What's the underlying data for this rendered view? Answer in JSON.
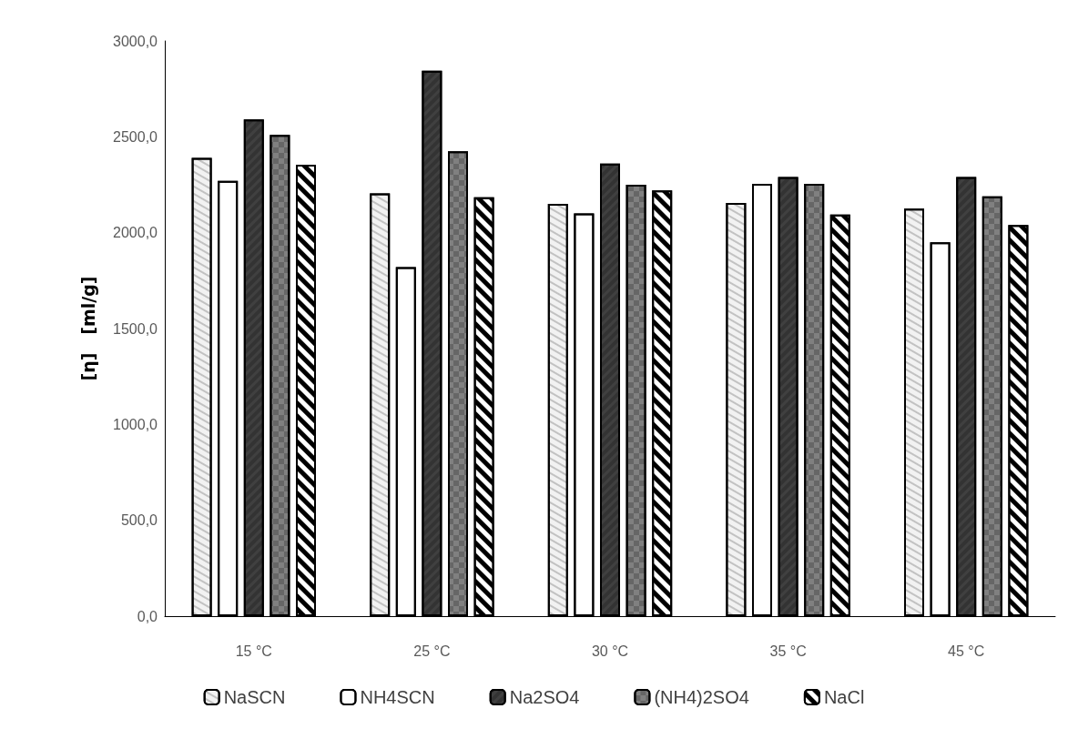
{
  "chart_data": {
    "type": "bar",
    "ylabel": "[η]   [ml/g]",
    "categories": [
      "15 °C",
      "25 °C",
      "30 °C",
      "35 °C",
      "45 °C"
    ],
    "series": [
      {
        "name": "NaSCN",
        "color": "#f2f2f2",
        "values": [
          2390,
          2205,
          2150,
          2155,
          2125
        ]
      },
      {
        "name": "NH4SCN",
        "color": "#ffffff",
        "values": [
          2270,
          1820,
          2100,
          2255,
          1950
        ]
      },
      {
        "name": "Na2SO4",
        "color": "#404040",
        "values": [
          2590,
          2845,
          2360,
          2290,
          2290
        ]
      },
      {
        "name": "(NH4)2SO4",
        "color": "#808080",
        "values": [
          2510,
          2425,
          2250,
          2255,
          2190
        ]
      },
      {
        "name": "NaCl",
        "color": "#ffffff",
        "values": [
          2355,
          2185,
          2220,
          2095,
          2040
        ]
      }
    ],
    "ylim": [
      0,
      3000
    ],
    "yticks": [
      {
        "value": 0,
        "label": "0,0"
      },
      {
        "value": 500,
        "label": "500,0"
      },
      {
        "value": 1000,
        "label": "1000,0"
      },
      {
        "value": 1500,
        "label": "1500,0"
      },
      {
        "value": 2000,
        "label": "2000,0"
      },
      {
        "value": 2500,
        "label": "2500,0"
      },
      {
        "value": 3000,
        "label": "3000,0"
      }
    ],
    "grid": false,
    "legend": "bottom"
  }
}
